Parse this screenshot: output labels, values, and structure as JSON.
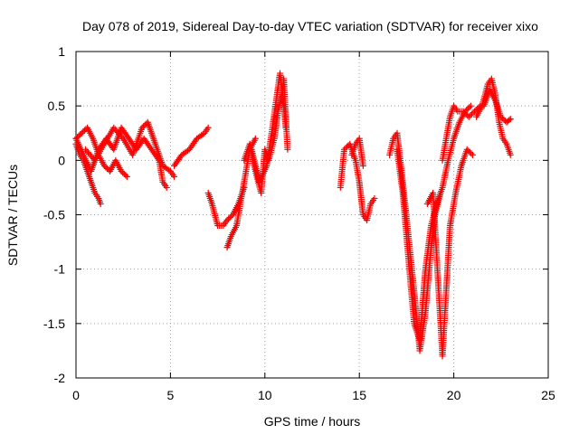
{
  "chart_data": {
    "type": "scatter",
    "title": "Day 078 of 2019, Sidereal Day-to-day VTEC variation (SDTVAR) for receiver xixo",
    "xlabel": "GPS time / hours",
    "ylabel": "SDTVAR / TECUs",
    "xlim": [
      0,
      25
    ],
    "ylim": [
      -2,
      1
    ],
    "xticks": [
      0,
      5,
      10,
      15,
      20,
      25
    ],
    "yticks": [
      -2,
      -1.5,
      -1,
      -0.5,
      0,
      0.5,
      1
    ],
    "xtick_labels": [
      "0",
      "5",
      "10",
      "15",
      "20",
      "25"
    ],
    "ytick_labels": [
      "-2",
      "-1.5",
      "-1",
      "-0.5",
      "0",
      "0.5",
      "1"
    ],
    "grid": true,
    "legend": "none",
    "marker": "plus",
    "color": "#ff0000",
    "series": [
      {
        "x": [
          0.0,
          0.2,
          0.4,
          0.6,
          0.8,
          1.0,
          1.2,
          1.3
        ],
        "y": [
          0.15,
          0.05,
          0.0,
          -0.1,
          -0.2,
          -0.3,
          -0.35,
          -0.4
        ]
      },
      {
        "x": [
          0.0,
          0.3,
          0.6,
          0.9,
          1.2,
          1.5,
          1.8,
          2.1,
          2.4,
          2.7
        ],
        "y": [
          0.2,
          0.25,
          0.3,
          0.2,
          0.05,
          -0.05,
          -0.1,
          0.0,
          -0.1,
          -0.15
        ]
      },
      {
        "x": [
          0.0,
          0.4,
          0.8,
          1.2,
          1.6,
          2.0,
          2.4,
          2.8,
          3.2,
          3.6,
          4.0,
          4.4,
          4.6,
          4.8
        ],
        "y": [
          0.2,
          0.05,
          -0.1,
          0.1,
          0.2,
          0.1,
          0.3,
          0.2,
          0.1,
          0.2,
          0.1,
          0.0,
          -0.2,
          -0.25
        ]
      },
      {
        "x": [
          0.5,
          1.0,
          1.5,
          2.0,
          2.5,
          3.0,
          3.5,
          3.8,
          4.2,
          4.6,
          5.0,
          5.2
        ],
        "y": [
          0.1,
          0.0,
          0.15,
          0.3,
          0.2,
          0.05,
          0.3,
          0.35,
          0.15,
          -0.05,
          -0.1,
          -0.15
        ]
      },
      {
        "x": [
          5.2,
          5.6,
          6.0,
          6.4,
          6.8,
          7.0
        ],
        "y": [
          -0.05,
          0.05,
          0.1,
          0.2,
          0.25,
          0.3
        ]
      },
      {
        "x": [
          7.0,
          7.2,
          7.5,
          7.8,
          8.0,
          8.3,
          8.6,
          8.9
        ],
        "y": [
          -0.3,
          -0.4,
          -0.6,
          -0.6,
          -0.55,
          -0.5,
          -0.4,
          -0.25
        ]
      },
      {
        "x": [
          8.0,
          8.2,
          8.5,
          8.8,
          9.0,
          9.2,
          9.5
        ],
        "y": [
          -0.8,
          -0.7,
          -0.6,
          -0.3,
          -0.1,
          0.1,
          0.2
        ]
      },
      {
        "x": [
          8.9,
          9.2,
          9.5,
          9.8,
          10.0,
          10.2,
          10.5,
          10.7,
          10.9,
          11.0,
          11.2
        ],
        "y": [
          0.0,
          0.15,
          -0.1,
          -0.3,
          0.1,
          0.0,
          0.2,
          0.45,
          0.6,
          0.75,
          0.1
        ]
      },
      {
        "x": [
          9.3,
          9.7,
          10.1,
          10.4,
          10.8,
          11.0,
          11.1
        ],
        "y": [
          0.1,
          -0.2,
          -0.05,
          0.3,
          0.8,
          0.5,
          0.3
        ]
      },
      {
        "x": [
          14.0,
          14.2,
          14.5,
          14.8,
          15.0,
          15.2,
          15.4,
          15.6,
          15.8
        ],
        "y": [
          -0.25,
          0.1,
          0.15,
          0.0,
          -0.2,
          -0.5,
          -0.55,
          -0.4,
          -0.35
        ]
      },
      {
        "x": [
          14.6,
          14.8,
          15.0,
          15.2
        ],
        "y": [
          0.05,
          0.15,
          0.2,
          -0.05
        ]
      },
      {
        "x": [
          16.6,
          16.8,
          17.0,
          17.3,
          17.6,
          17.9,
          18.2,
          18.5,
          18.8,
          19.0,
          19.3
        ],
        "y": [
          0.05,
          0.2,
          0.25,
          -0.2,
          -0.7,
          -1.2,
          -1.75,
          -1.4,
          -0.8,
          -0.5,
          -0.3
        ]
      },
      {
        "x": [
          17.0,
          17.3,
          17.6,
          17.9,
          18.2,
          18.5,
          18.8,
          19.1,
          19.4,
          19.7,
          20.0,
          20.3,
          20.6,
          20.9
        ],
        "y": [
          0.1,
          -0.3,
          -0.9,
          -1.5,
          -1.65,
          -1.0,
          -0.6,
          -0.4,
          -0.25,
          0.0,
          0.2,
          0.35,
          0.45,
          0.5
        ]
      },
      {
        "x": [
          18.6,
          18.9,
          19.2,
          19.4,
          19.6,
          19.8,
          20.1,
          20.4,
          20.7,
          21.0
        ],
        "y": [
          -0.4,
          -0.3,
          -1.2,
          -1.8,
          -1.2,
          -0.6,
          -0.3,
          -0.05,
          0.1,
          0.05
        ]
      },
      {
        "x": [
          19.4,
          19.6,
          19.8,
          20.0,
          20.2,
          20.5,
          20.8,
          21.1,
          21.4
        ],
        "y": [
          0.0,
          0.2,
          0.4,
          0.5,
          0.45,
          0.45,
          0.4,
          0.45,
          0.5
        ]
      },
      {
        "x": [
          21.2,
          21.5,
          21.8,
          22.0,
          22.2,
          22.4,
          22.6,
          22.8,
          23.0
        ],
        "y": [
          0.4,
          0.5,
          0.7,
          0.75,
          0.6,
          0.35,
          0.2,
          0.15,
          0.05
        ]
      },
      {
        "x": [
          21.6,
          21.9,
          22.2,
          22.5,
          22.8,
          23.0
        ],
        "y": [
          0.5,
          0.65,
          0.55,
          0.4,
          0.35,
          0.38
        ]
      }
    ]
  }
}
